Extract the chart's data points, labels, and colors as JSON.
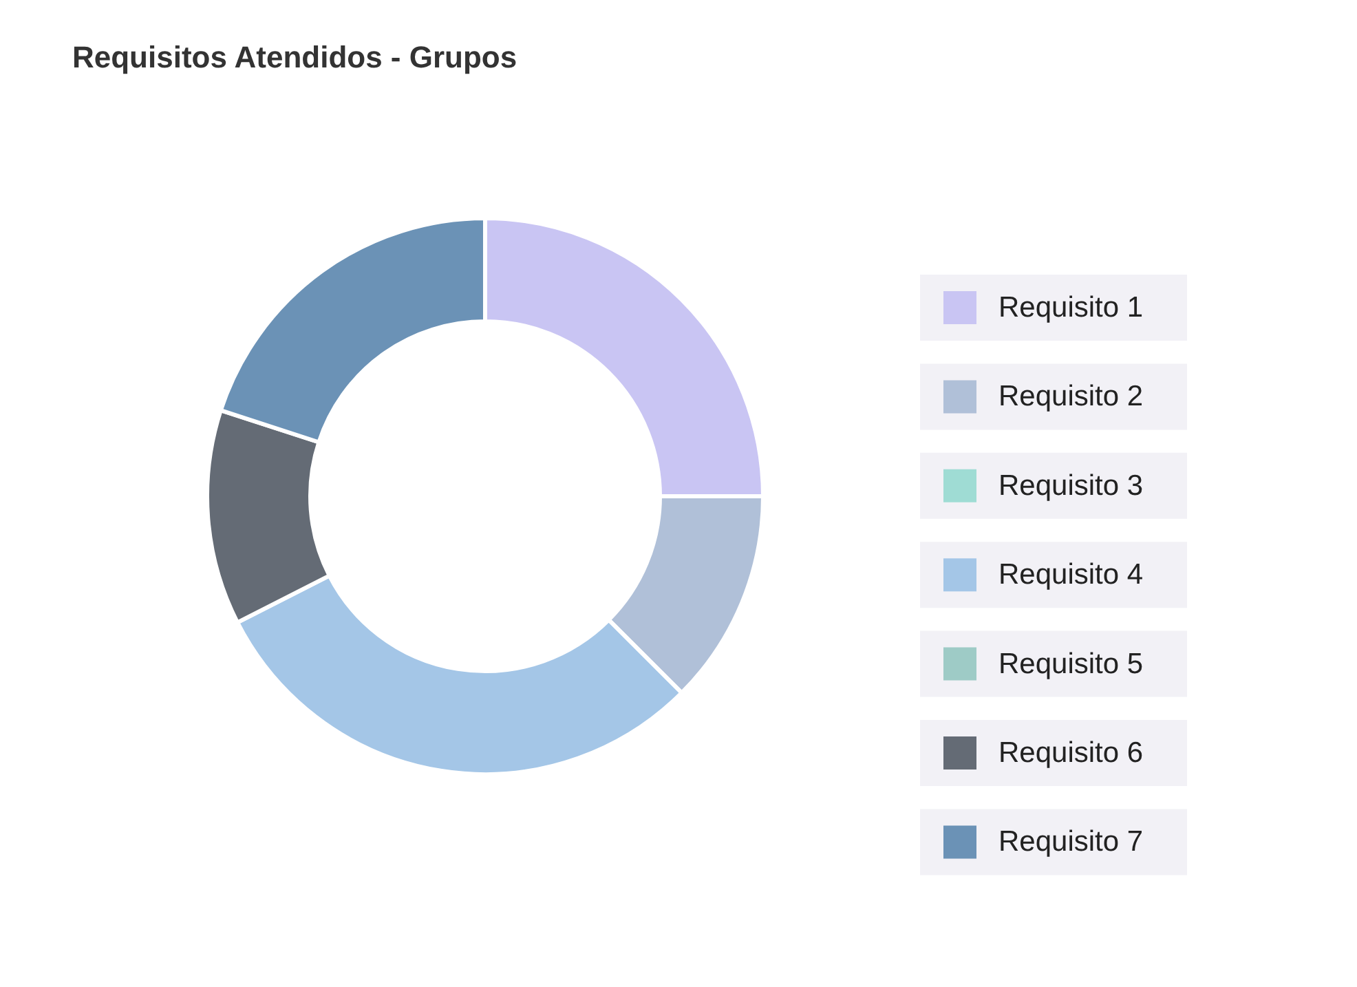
{
  "chart_data": {
    "type": "donut",
    "title": "Requisitos Atendidos - Grupos",
    "categories": [
      "Requisito 1",
      "Requisito 2",
      "Requisito 3",
      "Requisito 4",
      "Requisito 5",
      "Requisito 6",
      "Requisito 7"
    ],
    "values": [
      25,
      12.5,
      0,
      30,
      0,
      12.5,
      20
    ],
    "colors": [
      "#c9c5f3",
      "#b0c0d8",
      "#9fdcd4",
      "#a4c6e7",
      "#9ecbc6",
      "#646b75",
      "#6b92b6"
    ],
    "legend": "right"
  }
}
